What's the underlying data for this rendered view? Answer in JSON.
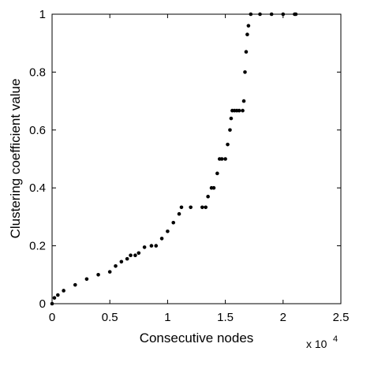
{
  "chart_data": {
    "type": "scatter",
    "title": "",
    "xlabel": "Consecutive nodes",
    "ylabel": "Clustering coefficient value",
    "x_scale_label": "x 10",
    "x_scale_exponent": "4",
    "xlim": [
      0,
      2.5
    ],
    "ylim": [
      0,
      1
    ],
    "x_ticks": [
      0,
      0.5,
      1,
      1.5,
      2,
      2.5
    ],
    "x_tick_labels": [
      "0",
      "0.5",
      "1",
      "1.5",
      "2",
      "2.5"
    ],
    "y_ticks": [
      0,
      0.2,
      0.4,
      0.6,
      0.8,
      1
    ],
    "y_tick_labels": [
      "0",
      "0.2",
      "0.4",
      "0.6",
      "0.8",
      "1"
    ],
    "grid": false,
    "marker_color": "#000000",
    "series": [
      {
        "x": [
          0,
          0.02,
          0.05,
          0.1,
          0.2,
          0.3,
          0.4,
          0.5,
          0.55,
          0.6,
          0.65,
          0.68,
          0.72,
          0.75,
          0.8,
          0.86,
          0.9,
          0.95,
          1.0,
          1.05,
          1.1,
          1.12,
          1.2,
          1.3,
          1.33,
          1.35,
          1.38,
          1.4,
          1.43,
          1.45,
          1.47,
          1.5,
          1.52,
          1.54,
          1.55,
          1.56,
          1.58,
          1.6,
          1.62,
          1.65,
          1.66,
          1.67,
          1.68,
          1.69,
          1.7,
          1.72,
          1.8,
          1.9,
          2.0,
          2.1,
          2.11
        ],
        "y": [
          0.0,
          0.02,
          0.03,
          0.045,
          0.065,
          0.085,
          0.1,
          0.11,
          0.13,
          0.145,
          0.155,
          0.167,
          0.167,
          0.175,
          0.195,
          0.2,
          0.2,
          0.225,
          0.25,
          0.28,
          0.31,
          0.333,
          0.333,
          0.333,
          0.333,
          0.37,
          0.4,
          0.4,
          0.45,
          0.5,
          0.5,
          0.5,
          0.55,
          0.6,
          0.64,
          0.667,
          0.667,
          0.667,
          0.667,
          0.667,
          0.7,
          0.8,
          0.87,
          0.93,
          0.96,
          1.0,
          1.0,
          1.0,
          1.0,
          1.0,
          1.0
        ]
      }
    ]
  }
}
